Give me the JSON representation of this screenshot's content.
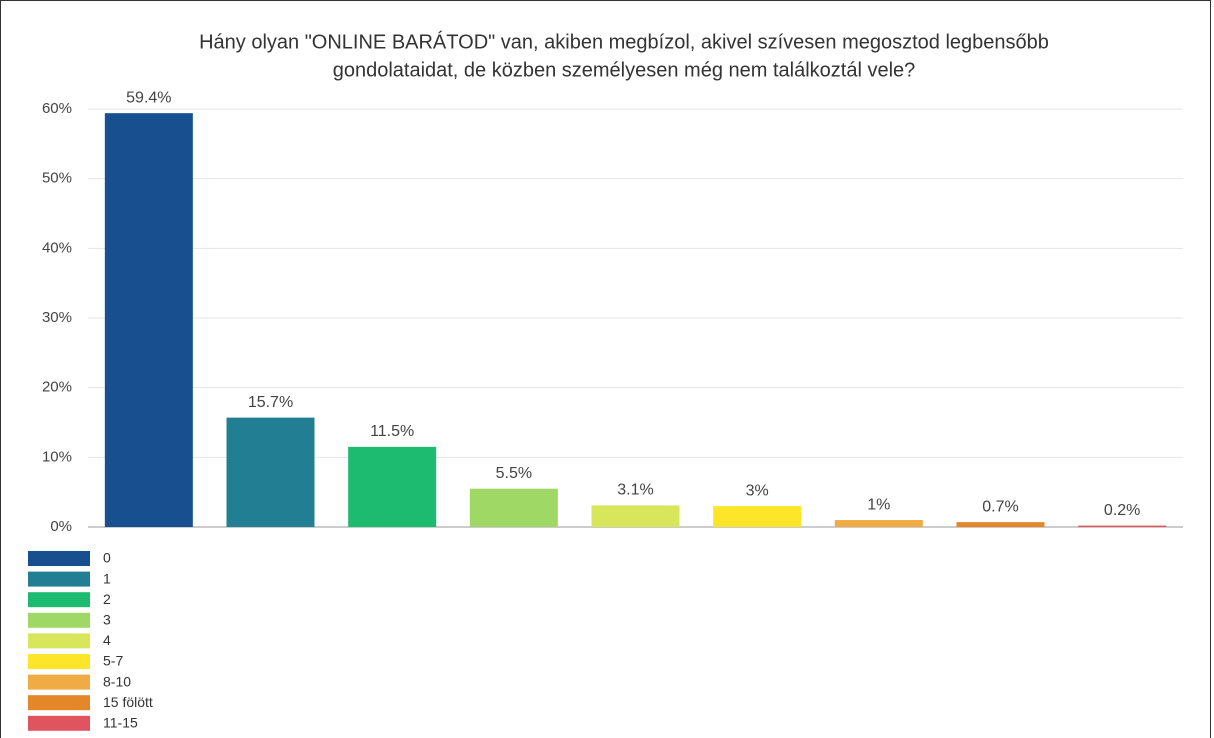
{
  "chart_data": {
    "type": "bar",
    "title": [
      "Hány olyan \"ONLINE BARÁTOD\" van, akiben megbízol, akivel szívesen megosztod legbensőbb",
      "gondolataidat, de közben személyesen még nem találkoztál vele?"
    ],
    "categories": [
      "0",
      "1",
      "2",
      "3",
      "4",
      "5-7",
      "8-10",
      "15 fölött",
      "11-15"
    ],
    "values": [
      59.4,
      15.7,
      11.5,
      5.5,
      3.1,
      3,
      1,
      0.7,
      0.2
    ],
    "value_labels": [
      "59.4%",
      "15.7%",
      "11.5%",
      "5.5%",
      "3.1%",
      "3%",
      "1%",
      "0.7%",
      "0.2%"
    ],
    "colors": [
      "#174f8f",
      "#227e93",
      "#1dbb6f",
      "#9fd864",
      "#d7e65a",
      "#fde52a",
      "#f0ab45",
      "#e38728",
      "#e05460"
    ],
    "ylim": [
      0,
      60
    ],
    "yticks": [
      {
        "value": 0,
        "label": "0%"
      },
      {
        "value": 10,
        "label": "10%"
      },
      {
        "value": 20,
        "label": "20%"
      },
      {
        "value": 30,
        "label": "30%"
      },
      {
        "value": 40,
        "label": "40%"
      },
      {
        "value": 50,
        "label": "50%"
      },
      {
        "value": 60,
        "label": "60%"
      }
    ],
    "grid": true,
    "legend": "bottom-left"
  }
}
